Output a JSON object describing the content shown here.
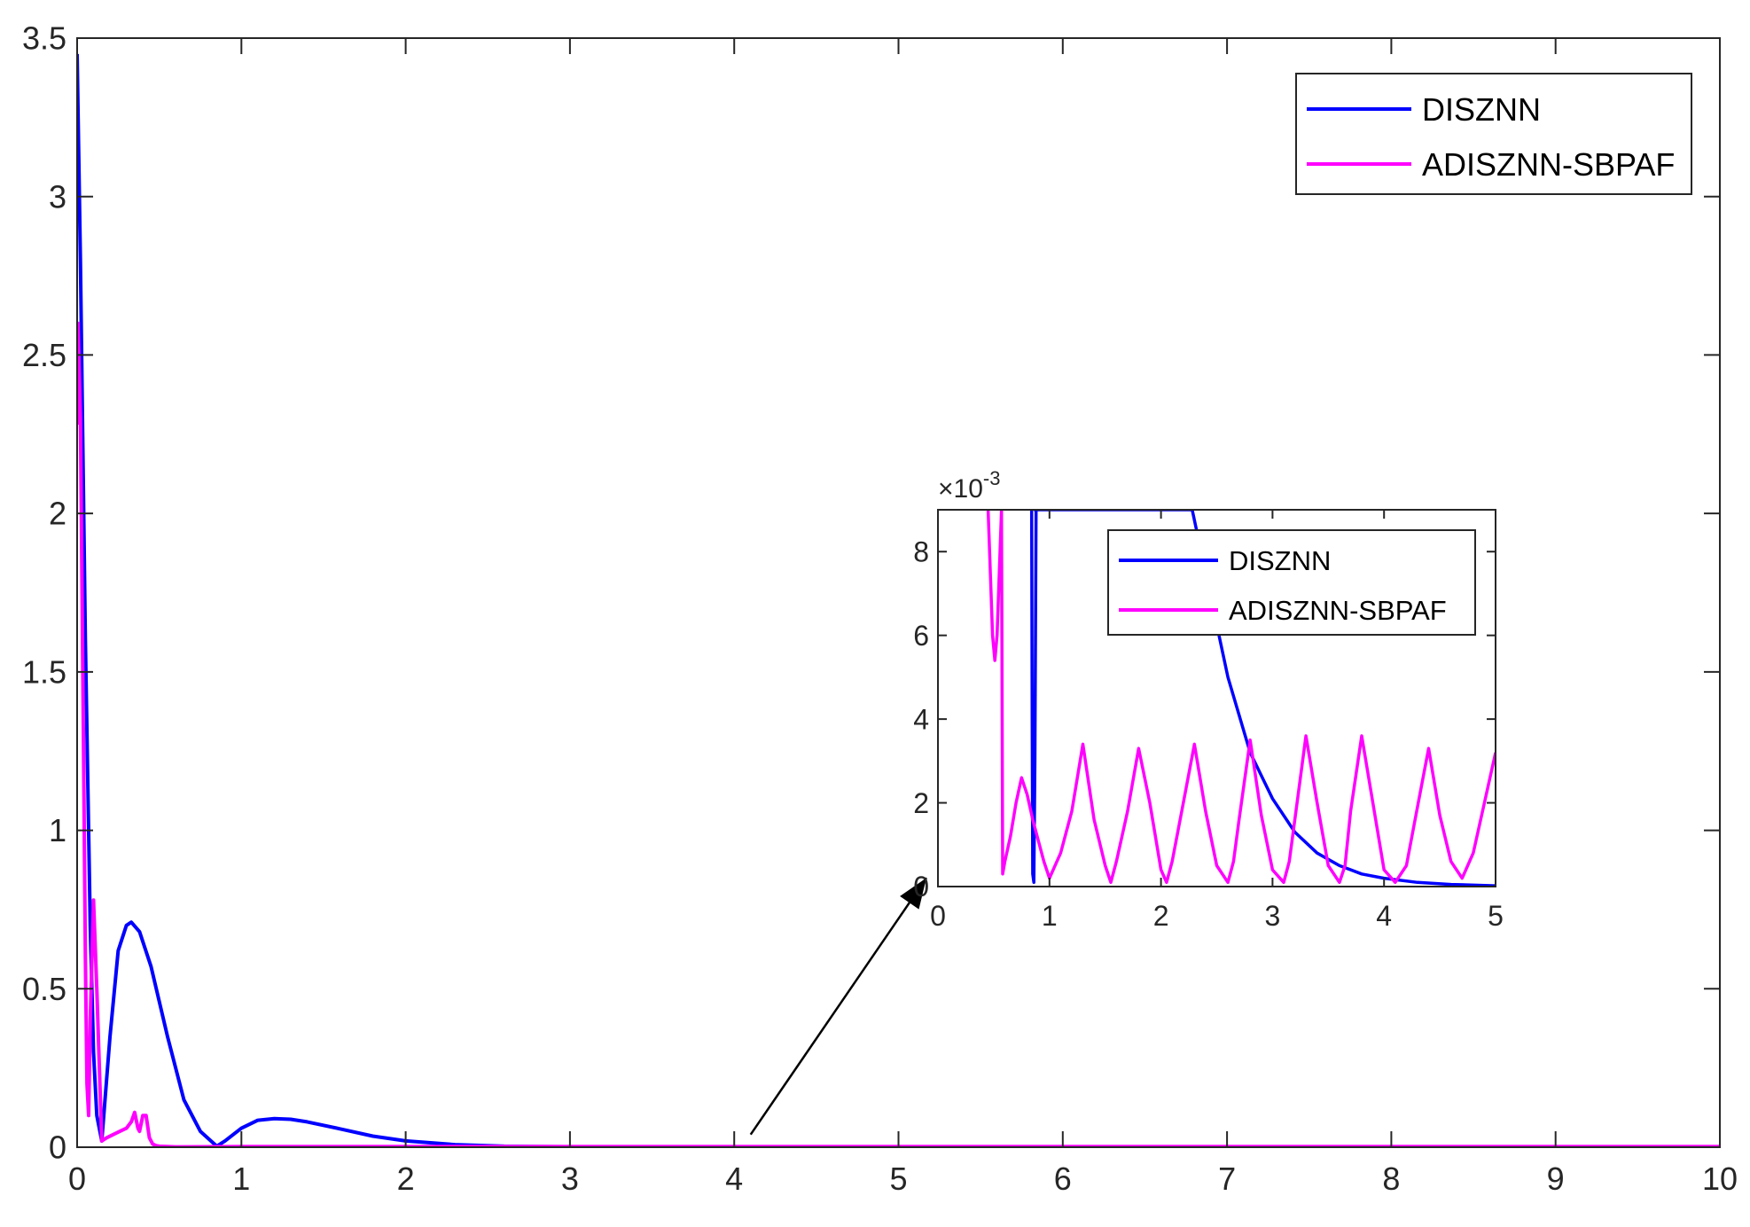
{
  "chart_data": [
    {
      "type": "line",
      "title": "",
      "xlabel": "",
      "ylabel": "",
      "xlim": [
        0,
        10
      ],
      "ylim": [
        0,
        3.5
      ],
      "xticks": [
        0,
        1,
        2,
        3,
        4,
        5,
        6,
        7,
        8,
        9,
        10
      ],
      "xtick_labels": [
        "0",
        "1",
        "2",
        "3",
        "4",
        "5",
        "6",
        "7",
        "8",
        "9",
        "10"
      ],
      "yticks": [
        0,
        0.5,
        1,
        1.5,
        2,
        2.5,
        3,
        3.5
      ],
      "ytick_labels": [
        "0",
        "0.5",
        "1",
        "1.5",
        "2",
        "2.5",
        "3",
        "3.5"
      ],
      "grid": false,
      "legend_position": "top-right",
      "series": [
        {
          "name": "DISZNN",
          "color": "#0000ff",
          "x": [
            0,
            0.02,
            0.05,
            0.08,
            0.1,
            0.12,
            0.15,
            0.2,
            0.25,
            0.3,
            0.33,
            0.38,
            0.45,
            0.55,
            0.65,
            0.75,
            0.85,
            0.9,
            1.0,
            1.1,
            1.2,
            1.3,
            1.4,
            1.6,
            1.8,
            2.0,
            2.3,
            2.6,
            3.0,
            3.5,
            4.0,
            5.0,
            6.0,
            8.0,
            10.0
          ],
          "y": [
            3.45,
            2.8,
            1.6,
            0.7,
            0.3,
            0.1,
            0.02,
            0.35,
            0.62,
            0.7,
            0.71,
            0.68,
            0.57,
            0.35,
            0.15,
            0.05,
            0.003,
            0.02,
            0.06,
            0.085,
            0.09,
            0.088,
            0.08,
            0.058,
            0.035,
            0.02,
            0.008,
            0.003,
            0.001,
            0.0003,
            0.0001,
            3e-05,
            1e-05,
            0.0,
            0.0
          ]
        },
        {
          "name": "ADISZNN-SBPAF",
          "color": "#ff00ff",
          "x": [
            0,
            0.005,
            0.02,
            0.04,
            0.05,
            0.06,
            0.07,
            0.08,
            0.1,
            0.12,
            0.15,
            0.18,
            0.22,
            0.26,
            0.3,
            0.33,
            0.35,
            0.37,
            0.38,
            0.4,
            0.42,
            0.44,
            0.46,
            0.48,
            0.5,
            0.55,
            0.6,
            1.0,
            2.0,
            5.0,
            10.0
          ],
          "y": [
            2.28,
            2.6,
            2.3,
            1.2,
            0.6,
            0.2,
            0.1,
            0.4,
            0.78,
            0.5,
            0.02,
            0.03,
            0.04,
            0.05,
            0.06,
            0.08,
            0.11,
            0.06,
            0.05,
            0.1,
            0.1,
            0.03,
            0.01,
            0.005,
            0.003,
            0.002,
            0.001,
            0.002,
            0.002,
            0.002,
            0.002
          ]
        }
      ],
      "annotations": [
        {
          "type": "arrow",
          "from": [
            4.1,
            0.04
          ],
          "to": [
            5.17,
            0.85
          ]
        }
      ]
    },
    {
      "type": "line",
      "title": "",
      "xlabel": "",
      "ylabel": "",
      "xlim": [
        0,
        5
      ],
      "ylim": [
        0,
        9
      ],
      "y_multiplier": "×10",
      "y_multiplier_exponent": "-3",
      "xticks": [
        0,
        1,
        2,
        3,
        4,
        5
      ],
      "xtick_labels": [
        "0",
        "1",
        "2",
        "3",
        "4",
        "5"
      ],
      "yticks": [
        0,
        2,
        4,
        6,
        8
      ],
      "ytick_labels": [
        "0",
        "2",
        "4",
        "6",
        "8"
      ],
      "grid": false,
      "legend_position": "top-right",
      "series": [
        {
          "name": "DISZNN",
          "color": "#0000ff",
          "x": [
            0.84,
            0.845,
            0.85,
            0.86,
            0.87,
            0.88,
            0.87,
            2.28,
            2.4,
            2.6,
            2.8,
            3.0,
            3.2,
            3.4,
            3.6,
            3.8,
            4.0,
            4.3,
            4.6,
            5.0
          ],
          "y": [
            9,
            4,
            0.3,
            0.1,
            3,
            9,
            9,
            9,
            7.5,
            5.0,
            3.2,
            2.1,
            1.3,
            0.8,
            0.5,
            0.3,
            0.2,
            0.1,
            0.05,
            0.02
          ]
        },
        {
          "name": "ADISZNN-SBPAF",
          "color": "#ff00ff",
          "x": [
            0.45,
            0.47,
            0.49,
            0.51,
            0.53,
            0.55,
            0.57,
            0.575,
            0.58,
            0.6,
            0.65,
            0.7,
            0.75,
            0.8,
            0.85,
            0.9,
            0.95,
            1.0,
            1.1,
            1.2,
            1.3,
            1.4,
            1.5,
            1.55,
            1.6,
            1.7,
            1.8,
            1.9,
            2.0,
            2.05,
            2.1,
            2.2,
            2.3,
            2.4,
            2.5,
            2.6,
            2.65,
            2.7,
            2.8,
            2.9,
            3.0,
            3.1,
            3.15,
            3.2,
            3.3,
            3.4,
            3.5,
            3.6,
            3.65,
            3.7,
            3.8,
            3.9,
            4.0,
            4.1,
            4.2,
            4.3,
            4.4,
            4.5,
            4.6,
            4.7,
            4.8,
            4.9,
            5.0
          ],
          "y": [
            9,
            7.5,
            6,
            5.4,
            6,
            7.5,
            9,
            5,
            0.3,
            0.6,
            1.2,
            2.0,
            2.6,
            2.2,
            1.6,
            1.1,
            0.6,
            0.2,
            0.8,
            1.8,
            3.4,
            1.6,
            0.5,
            0.1,
            0.6,
            1.8,
            3.3,
            2.0,
            0.4,
            0.1,
            0.6,
            2.0,
            3.4,
            1.8,
            0.5,
            0.1,
            0.6,
            1.6,
            3.5,
            1.7,
            0.4,
            0.1,
            0.6,
            1.6,
            3.6,
            2.0,
            0.5,
            0.1,
            0.5,
            1.8,
            3.6,
            2.0,
            0.4,
            0.1,
            0.5,
            1.9,
            3.3,
            1.7,
            0.6,
            0.2,
            0.8,
            2.0,
            3.2
          ]
        }
      ]
    }
  ]
}
